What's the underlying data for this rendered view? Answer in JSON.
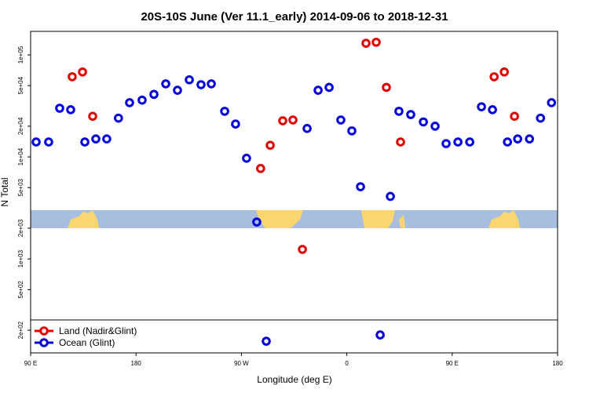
{
  "chart_data": {
    "type": "scatter",
    "title": "20S-10S June (Ver 11.1_early)   2014-09-06 to 2018-12-31",
    "xlabel": "Longitude (deg E)",
    "ylabel": "N Total",
    "log_y": true,
    "legend": "lower left",
    "xlim": [
      90,
      540
    ],
    "xticks": [
      {
        "value": 90,
        "label": "90 E"
      },
      {
        "value": 180,
        "label": "180"
      },
      {
        "value": 270,
        "label": "90 W"
      },
      {
        "value": 360,
        "label": "0"
      },
      {
        "value": 450,
        "label": "90 E"
      },
      {
        "value": 540,
        "label": "180"
      }
    ],
    "ylim": [
      120,
      170000
    ],
    "yticks": [
      {
        "value": 200,
        "label": "2e+02"
      },
      {
        "value": 500,
        "label": "5e+02"
      },
      {
        "value": 1000,
        "label": "1e+03"
      },
      {
        "value": 2000,
        "label": "2e+03"
      },
      {
        "value": 5000,
        "label": "5e+03"
      },
      {
        "value": 10000,
        "label": "1e+04"
      },
      {
        "value": 20000,
        "label": "2e+04"
      },
      {
        "value": 50000,
        "label": "5e+04"
      },
      {
        "value": 100000,
        "label": "1e+05"
      }
    ],
    "series": [
      {
        "name": "Land (Nadir&Glint)",
        "color": "#e00000",
        "x": [
          125.5,
          134.3,
          143,
          294.6,
          286.4,
          305.3,
          314,
          322.1,
          376.4,
          385.1,
          393.8,
          405.9,
          485.8,
          494.5,
          503.2
        ],
        "values": [
          61000,
          68000,
          25000,
          13000,
          7700,
          22600,
          23000,
          1240,
          130000,
          133000,
          48000,
          14000,
          61000,
          68000,
          25000
        ]
      },
      {
        "name": "Ocean (Glint)",
        "color": "#0000dd",
        "x": [
          94.7,
          105.4,
          114.8,
          124.2,
          136.3,
          145.7,
          155,
          165,
          174.5,
          185.2,
          195.3,
          205.4,
          215.4,
          225.5,
          235.5,
          244.3,
          255.7,
          265,
          274.4,
          283.1,
          291.2,
          326.1,
          335.5,
          344.9,
          354.9,
          364.3,
          371.7,
          388.5,
          397.2,
          404.5,
          414.6,
          425.4,
          435.4,
          444.8,
          454.9,
          465,
          475,
          484.4,
          497.2,
          505.9,
          516,
          525.4,
          534.8
        ],
        "values": [
          14000,
          14000,
          30000,
          29000,
          14000,
          15000,
          15000,
          24000,
          34000,
          36000,
          41000,
          52000,
          45000,
          57000,
          51000,
          52000,
          28000,
          21000,
          9700,
          2300,
          156,
          19000,
          45000,
          48000,
          23000,
          18000,
          5100,
          180,
          4100,
          28000,
          26000,
          22000,
          20000,
          13500,
          14000,
          14000,
          31000,
          29000,
          14000,
          15000,
          15000,
          24000,
          34000
        ]
      }
    ]
  }
}
